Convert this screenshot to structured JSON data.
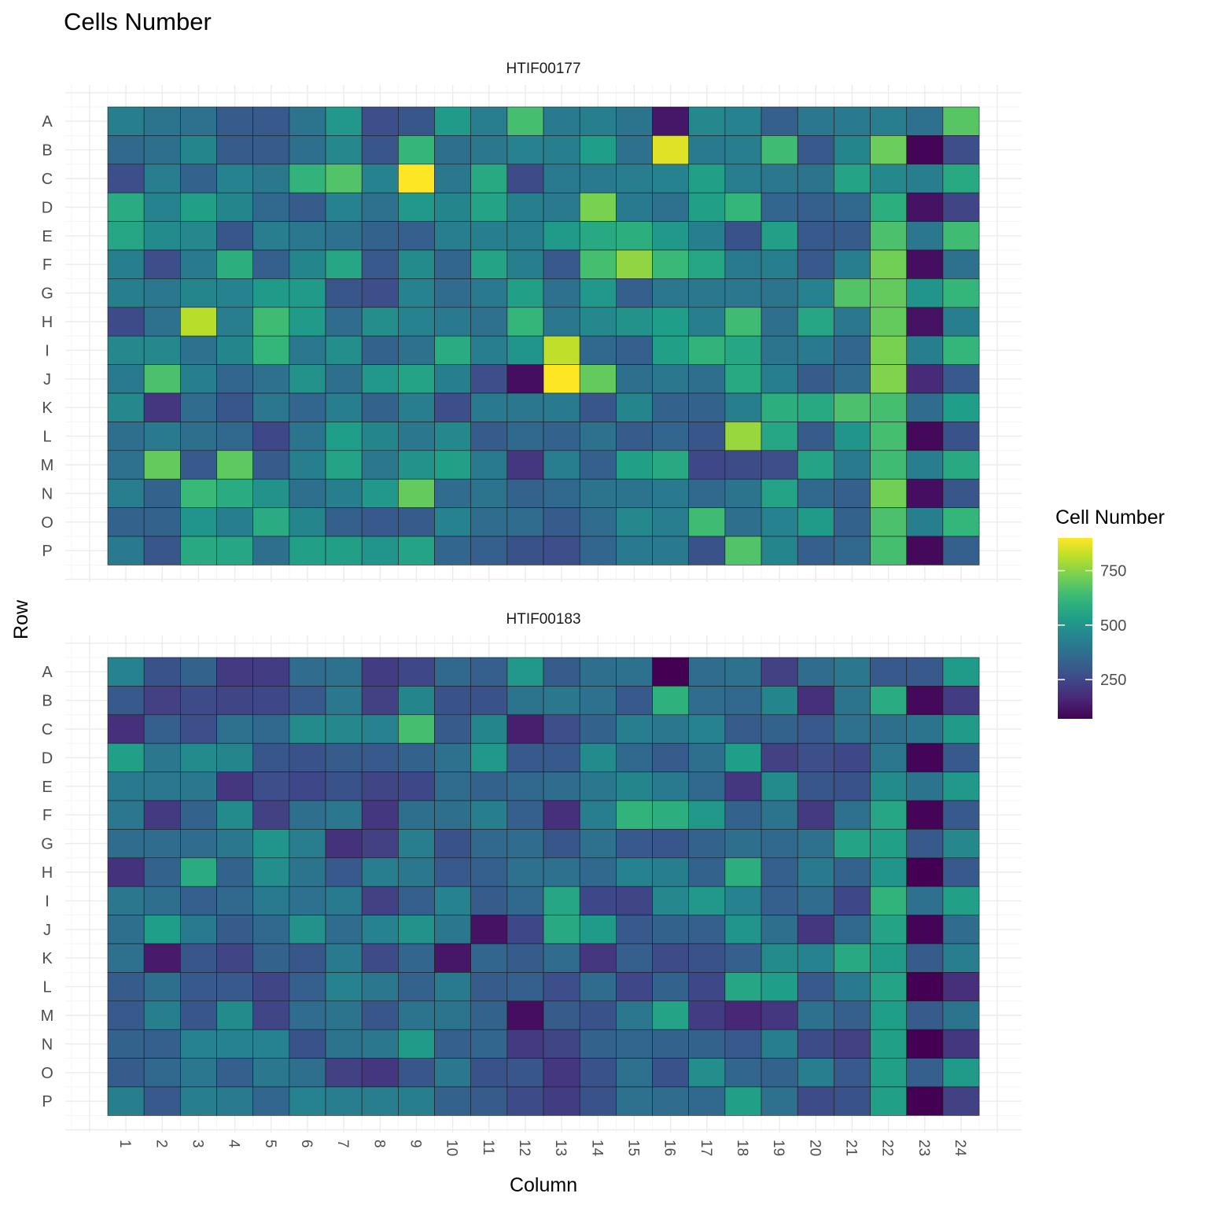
{
  "chart_data": {
    "type": "heatmap",
    "title": "Cells Number",
    "xlabel": "Column",
    "ylabel": "Row",
    "rows": [
      "A",
      "B",
      "C",
      "D",
      "E",
      "F",
      "G",
      "H",
      "I",
      "J",
      "K",
      "L",
      "M",
      "N",
      "O",
      "P"
    ],
    "columns": [
      "1",
      "2",
      "3",
      "4",
      "5",
      "6",
      "7",
      "8",
      "9",
      "10",
      "11",
      "12",
      "13",
      "14",
      "15",
      "16",
      "17",
      "18",
      "19",
      "20",
      "21",
      "22",
      "23",
      "24"
    ],
    "legend": {
      "title": "Cell Number",
      "ticks": [
        250,
        500,
        750
      ],
      "range": [
        70,
        900
      ],
      "palette": "viridis",
      "placement": "right"
    },
    "facets": [
      {
        "name": "HTIF00177",
        "values": [
          [
            430,
            390,
            380,
            310,
            300,
            390,
            510,
            270,
            290,
            520,
            420,
            650,
            410,
            430,
            390,
            120,
            460,
            440,
            320,
            400,
            410,
            420,
            380,
            680
          ],
          [
            350,
            370,
            450,
            310,
            310,
            370,
            460,
            290,
            620,
            370,
            400,
            440,
            430,
            530,
            380,
            860,
            410,
            420,
            640,
            300,
            450,
            710,
            80,
            270
          ],
          [
            270,
            420,
            330,
            440,
            400,
            610,
            670,
            440,
            900,
            400,
            570,
            260,
            410,
            410,
            420,
            440,
            540,
            420,
            400,
            390,
            550,
            460,
            420,
            570
          ],
          [
            580,
            440,
            540,
            450,
            350,
            310,
            440,
            380,
            510,
            450,
            550,
            430,
            410,
            730,
            410,
            380,
            540,
            620,
            340,
            320,
            350,
            590,
            110,
            240
          ],
          [
            560,
            470,
            460,
            290,
            420,
            400,
            380,
            330,
            320,
            420,
            430,
            430,
            520,
            570,
            590,
            510,
            430,
            280,
            540,
            300,
            310,
            660,
            400,
            640
          ],
          [
            430,
            270,
            410,
            590,
            320,
            450,
            560,
            300,
            470,
            340,
            550,
            430,
            300,
            650,
            760,
            630,
            560,
            410,
            430,
            300,
            420,
            720,
            100,
            380
          ],
          [
            430,
            400,
            450,
            440,
            520,
            520,
            290,
            270,
            440,
            360,
            410,
            540,
            380,
            510,
            320,
            400,
            400,
            400,
            390,
            440,
            670,
            700,
            500,
            620
          ],
          [
            260,
            380,
            810,
            420,
            640,
            520,
            360,
            480,
            440,
            410,
            380,
            620,
            400,
            460,
            490,
            530,
            430,
            640,
            370,
            560,
            400,
            700,
            110,
            430
          ],
          [
            460,
            460,
            380,
            450,
            620,
            400,
            480,
            330,
            380,
            580,
            420,
            500,
            820,
            350,
            320,
            540,
            610,
            560,
            390,
            410,
            340,
            730,
            430,
            620
          ],
          [
            410,
            660,
            430,
            340,
            380,
            490,
            370,
            510,
            550,
            430,
            270,
            100,
            900,
            700,
            370,
            400,
            370,
            570,
            430,
            310,
            360,
            740,
            170,
            300
          ],
          [
            460,
            200,
            360,
            290,
            400,
            340,
            430,
            330,
            420,
            270,
            410,
            400,
            410,
            290,
            450,
            330,
            330,
            430,
            590,
            570,
            660,
            650,
            360,
            530
          ],
          [
            370,
            410,
            370,
            350,
            250,
            390,
            530,
            450,
            400,
            460,
            310,
            350,
            330,
            380,
            310,
            340,
            290,
            770,
            560,
            310,
            500,
            650,
            90,
            280
          ],
          [
            380,
            700,
            300,
            690,
            310,
            430,
            550,
            400,
            490,
            540,
            410,
            200,
            420,
            320,
            540,
            570,
            250,
            260,
            270,
            550,
            410,
            640,
            420,
            570
          ],
          [
            420,
            330,
            630,
            580,
            490,
            370,
            430,
            510,
            700,
            360,
            390,
            330,
            350,
            390,
            390,
            410,
            350,
            390,
            550,
            350,
            320,
            720,
            100,
            290
          ],
          [
            330,
            330,
            500,
            430,
            580,
            450,
            320,
            300,
            310,
            440,
            360,
            360,
            310,
            360,
            460,
            420,
            640,
            370,
            440,
            520,
            330,
            660,
            430,
            620
          ],
          [
            410,
            290,
            570,
            560,
            370,
            540,
            540,
            500,
            550,
            340,
            320,
            280,
            270,
            340,
            410,
            410,
            280,
            670,
            450,
            320,
            350,
            650,
            90,
            320
          ]
        ]
      },
      {
        "name": "HTIF00183",
        "values": [
          [
            440,
            280,
            330,
            210,
            220,
            360,
            380,
            220,
            250,
            350,
            320,
            510,
            310,
            370,
            380,
            60,
            360,
            380,
            230,
            360,
            400,
            300,
            300,
            520
          ],
          [
            300,
            230,
            260,
            240,
            250,
            300,
            400,
            230,
            450,
            280,
            280,
            390,
            400,
            380,
            300,
            600,
            360,
            350,
            450,
            180,
            390,
            580,
            90,
            220
          ],
          [
            180,
            320,
            270,
            380,
            350,
            470,
            460,
            440,
            650,
            310,
            450,
            140,
            270,
            330,
            420,
            400,
            440,
            310,
            330,
            300,
            380,
            370,
            390,
            520
          ],
          [
            540,
            400,
            470,
            450,
            290,
            280,
            310,
            300,
            330,
            380,
            510,
            300,
            300,
            470,
            350,
            310,
            370,
            530,
            230,
            270,
            250,
            400,
            80,
            300
          ],
          [
            410,
            400,
            400,
            200,
            270,
            250,
            280,
            240,
            250,
            360,
            330,
            350,
            360,
            400,
            450,
            410,
            350,
            200,
            470,
            290,
            280,
            470,
            390,
            510
          ],
          [
            400,
            210,
            330,
            470,
            230,
            370,
            400,
            200,
            370,
            370,
            430,
            320,
            180,
            420,
            610,
            590,
            510,
            330,
            390,
            210,
            380,
            560,
            80,
            300
          ],
          [
            360,
            360,
            360,
            400,
            500,
            420,
            190,
            230,
            420,
            280,
            350,
            360,
            290,
            380,
            300,
            290,
            330,
            370,
            350,
            380,
            550,
            540,
            300,
            460
          ],
          [
            190,
            330,
            580,
            330,
            480,
            390,
            300,
            420,
            400,
            300,
            320,
            380,
            380,
            350,
            440,
            430,
            330,
            590,
            320,
            410,
            330,
            500,
            70,
            300
          ],
          [
            400,
            370,
            320,
            350,
            410,
            380,
            410,
            230,
            320,
            440,
            310,
            350,
            560,
            250,
            240,
            460,
            510,
            440,
            320,
            360,
            250,
            610,
            380,
            540
          ],
          [
            370,
            530,
            410,
            310,
            350,
            490,
            360,
            440,
            490,
            400,
            110,
            250,
            570,
            520,
            300,
            330,
            320,
            500,
            370,
            200,
            350,
            550,
            80,
            360
          ],
          [
            380,
            130,
            290,
            240,
            330,
            290,
            410,
            260,
            340,
            120,
            340,
            310,
            360,
            200,
            320,
            260,
            280,
            320,
            470,
            440,
            570,
            520,
            310,
            420
          ],
          [
            310,
            370,
            300,
            300,
            240,
            320,
            440,
            400,
            330,
            410,
            310,
            320,
            270,
            360,
            250,
            330,
            250,
            560,
            530,
            300,
            410,
            550,
            70,
            180
          ],
          [
            300,
            430,
            290,
            470,
            240,
            360,
            390,
            290,
            390,
            390,
            330,
            100,
            310,
            280,
            400,
            550,
            220,
            160,
            200,
            380,
            320,
            530,
            310,
            390
          ],
          [
            330,
            320,
            440,
            440,
            440,
            280,
            390,
            400,
            520,
            320,
            340,
            210,
            240,
            330,
            340,
            330,
            330,
            300,
            430,
            260,
            230,
            540,
            70,
            200
          ],
          [
            310,
            350,
            400,
            320,
            400,
            370,
            230,
            200,
            290,
            400,
            280,
            290,
            200,
            280,
            380,
            280,
            480,
            340,
            330,
            420,
            300,
            540,
            320,
            520
          ],
          [
            430,
            300,
            430,
            410,
            340,
            440,
            420,
            420,
            430,
            330,
            310,
            260,
            220,
            280,
            380,
            360,
            350,
            540,
            380,
            260,
            280,
            540,
            60,
            230
          ]
        ]
      }
    ]
  }
}
